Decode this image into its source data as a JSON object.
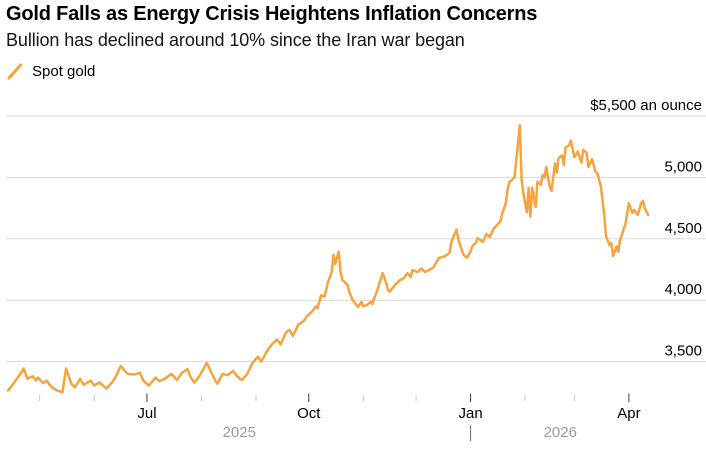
{
  "header": {
    "title": "Gold Falls as Energy Crisis Heightens Inflation Concerns",
    "subtitle": "Bullion has declined around 10% since the Iran war began",
    "legend": [
      {
        "label": "Spot gold",
        "swatch": "orange-slash"
      }
    ]
  },
  "colors": {
    "accent_orange": "#F7A33D",
    "gridline": "#D9D9D9",
    "minor_tick": "#C9C9C9",
    "major_tick": "#3A3A3A",
    "axis_text": "#000000",
    "year_text": "#9B9B9B",
    "year_separator": "#6E6E6E",
    "title_text": "#000000",
    "subtitle_text": "#151515"
  },
  "chart_data": {
    "type": "line",
    "title": "Gold Falls as Energy Crisis Heightens Inflation Concerns",
    "subtitle": "Bullion has declined around 10% since the Iran war began",
    "legend_position": "top-left",
    "grid": "horizontal",
    "x_domain": [
      "2025-04-13",
      "2026-04-13"
    ],
    "ylim": [
      3200,
      5500
    ],
    "yticks": [
      {
        "value": 5500,
        "label": "$5,500 an ounce"
      },
      {
        "value": 5000,
        "label": "5,000"
      },
      {
        "value": 4500,
        "label": "4,500"
      },
      {
        "value": 4000,
        "label": "4,000"
      },
      {
        "value": 3500,
        "label": "3,500"
      }
    ],
    "xticks": [
      {
        "date": "2025-05-01",
        "label": ""
      },
      {
        "date": "2025-06-01",
        "label": ""
      },
      {
        "date": "2025-07-01",
        "label": "Jul"
      },
      {
        "date": "2025-08-01",
        "label": ""
      },
      {
        "date": "2025-09-01",
        "label": ""
      },
      {
        "date": "2025-10-01",
        "label": "Oct"
      },
      {
        "date": "2025-11-01",
        "label": ""
      },
      {
        "date": "2025-12-01",
        "label": ""
      },
      {
        "date": "2026-01-01",
        "label": "Jan"
      },
      {
        "date": "2026-02-01",
        "label": ""
      },
      {
        "date": "2026-03-01",
        "label": ""
      },
      {
        "date": "2026-04-01",
        "label": "Apr"
      }
    ],
    "year_labels": [
      {
        "label": "2025",
        "from": "2025-04-13",
        "to": "2026-01-01"
      },
      {
        "label": "2026",
        "from": "2026-01-01",
        "to": "2026-04-13"
      }
    ],
    "year_separator_date": "2026-01-01",
    "series": [
      {
        "name": "Spot gold",
        "color": "#F7A33D",
        "points": [
          [
            "2025-04-13",
            3265
          ],
          [
            "2025-04-16",
            3320
          ],
          [
            "2025-04-18",
            3360
          ],
          [
            "2025-04-20",
            3400
          ],
          [
            "2025-04-22",
            3445
          ],
          [
            "2025-04-24",
            3360
          ],
          [
            "2025-04-27",
            3380
          ],
          [
            "2025-04-29",
            3345
          ],
          [
            "2025-04-30",
            3370
          ],
          [
            "2025-05-03",
            3325
          ],
          [
            "2025-05-05",
            3345
          ],
          [
            "2025-05-07",
            3305
          ],
          [
            "2025-05-09",
            3280
          ],
          [
            "2025-05-11",
            3265
          ],
          [
            "2025-05-14",
            3250
          ],
          [
            "2025-05-16",
            3445
          ],
          [
            "2025-05-19",
            3320
          ],
          [
            "2025-05-21",
            3290
          ],
          [
            "2025-05-24",
            3360
          ],
          [
            "2025-05-26",
            3310
          ],
          [
            "2025-05-30",
            3345
          ],
          [
            "2025-06-01",
            3305
          ],
          [
            "2025-06-04",
            3330
          ],
          [
            "2025-06-08",
            3280
          ],
          [
            "2025-06-12",
            3345
          ],
          [
            "2025-06-14",
            3400
          ],
          [
            "2025-06-16",
            3465
          ],
          [
            "2025-06-20",
            3400
          ],
          [
            "2025-06-24",
            3395
          ],
          [
            "2025-06-27",
            3410
          ],
          [
            "2025-06-29",
            3345
          ],
          [
            "2025-07-02",
            3305
          ],
          [
            "2025-07-06",
            3370
          ],
          [
            "2025-07-08",
            3340
          ],
          [
            "2025-07-11",
            3360
          ],
          [
            "2025-07-15",
            3400
          ],
          [
            "2025-07-18",
            3350
          ],
          [
            "2025-07-21",
            3410
          ],
          [
            "2025-07-24",
            3440
          ],
          [
            "2025-07-26",
            3370
          ],
          [
            "2025-07-28",
            3330
          ],
          [
            "2025-07-31",
            3385
          ],
          [
            "2025-08-04",
            3490
          ],
          [
            "2025-08-08",
            3370
          ],
          [
            "2025-08-10",
            3320
          ],
          [
            "2025-08-13",
            3400
          ],
          [
            "2025-08-16",
            3390
          ],
          [
            "2025-08-19",
            3425
          ],
          [
            "2025-08-22",
            3370
          ],
          [
            "2025-08-24",
            3350
          ],
          [
            "2025-08-27",
            3400
          ],
          [
            "2025-08-30",
            3490
          ],
          [
            "2025-09-02",
            3540
          ],
          [
            "2025-09-04",
            3500
          ],
          [
            "2025-09-07",
            3580
          ],
          [
            "2025-09-10",
            3640
          ],
          [
            "2025-09-13",
            3680
          ],
          [
            "2025-09-15",
            3640
          ],
          [
            "2025-09-18",
            3735
          ],
          [
            "2025-09-20",
            3760
          ],
          [
            "2025-09-22",
            3710
          ],
          [
            "2025-09-25",
            3800
          ],
          [
            "2025-09-28",
            3830
          ],
          [
            "2025-09-30",
            3870
          ],
          [
            "2025-10-03",
            3910
          ],
          [
            "2025-10-05",
            3950
          ],
          [
            "2025-10-06",
            3935
          ],
          [
            "2025-10-08",
            4040
          ],
          [
            "2025-10-10",
            4030
          ],
          [
            "2025-10-12",
            4150
          ],
          [
            "2025-10-14",
            4230
          ],
          [
            "2025-10-15",
            4370
          ],
          [
            "2025-10-16",
            4295
          ],
          [
            "2025-10-18",
            4395
          ],
          [
            "2025-10-19",
            4240
          ],
          [
            "2025-10-20",
            4165
          ],
          [
            "2025-10-22",
            4140
          ],
          [
            "2025-10-23",
            4125
          ],
          [
            "2025-10-24",
            4070
          ],
          [
            "2025-10-26",
            4000
          ],
          [
            "2025-10-29",
            3945
          ],
          [
            "2025-10-31",
            3985
          ],
          [
            "2025-11-01",
            3950
          ],
          [
            "2025-11-03",
            3960
          ],
          [
            "2025-11-05",
            3985
          ],
          [
            "2025-11-06",
            3970
          ],
          [
            "2025-11-09",
            4085
          ],
          [
            "2025-11-12",
            4220
          ],
          [
            "2025-11-14",
            4140
          ],
          [
            "2025-11-15",
            4085
          ],
          [
            "2025-11-16",
            4070
          ],
          [
            "2025-11-19",
            4125
          ],
          [
            "2025-11-22",
            4165
          ],
          [
            "2025-11-24",
            4180
          ],
          [
            "2025-11-26",
            4220
          ],
          [
            "2025-11-28",
            4190
          ],
          [
            "2025-11-29",
            4245
          ],
          [
            "2025-12-02",
            4230
          ],
          [
            "2025-12-04",
            4260
          ],
          [
            "2025-12-06",
            4230
          ],
          [
            "2025-12-09",
            4250
          ],
          [
            "2025-12-11",
            4270
          ],
          [
            "2025-12-14",
            4345
          ],
          [
            "2025-12-17",
            4355
          ],
          [
            "2025-12-20",
            4385
          ],
          [
            "2025-12-21",
            4470
          ],
          [
            "2025-12-24",
            4575
          ],
          [
            "2025-12-25",
            4500
          ],
          [
            "2025-12-26",
            4450
          ],
          [
            "2025-12-28",
            4370
          ],
          [
            "2025-12-30",
            4345
          ],
          [
            "2026-01-01",
            4400
          ],
          [
            "2026-01-02",
            4440
          ],
          [
            "2026-01-04",
            4470
          ],
          [
            "2026-01-05",
            4505
          ],
          [
            "2026-01-08",
            4475
          ],
          [
            "2026-01-10",
            4540
          ],
          [
            "2026-01-12",
            4515
          ],
          [
            "2026-01-14",
            4580
          ],
          [
            "2026-01-15",
            4595
          ],
          [
            "2026-01-18",
            4645
          ],
          [
            "2026-01-19",
            4710
          ],
          [
            "2026-01-21",
            4790
          ],
          [
            "2026-01-22",
            4900
          ],
          [
            "2026-01-23",
            4960
          ],
          [
            "2026-01-25",
            4985
          ],
          [
            "2026-01-26",
            5005
          ],
          [
            "2026-01-29",
            5425
          ],
          [
            "2026-01-30",
            4980
          ],
          [
            "2026-01-31",
            4870
          ],
          [
            "2026-02-02",
            4715
          ],
          [
            "2026-02-03",
            4915
          ],
          [
            "2026-02-04",
            4680
          ],
          [
            "2026-02-05",
            4915
          ],
          [
            "2026-02-07",
            4760
          ],
          [
            "2026-02-08",
            4965
          ],
          [
            "2026-02-10",
            4940
          ],
          [
            "2026-02-11",
            5020
          ],
          [
            "2026-02-12",
            5000
          ],
          [
            "2026-02-13",
            5085
          ],
          [
            "2026-02-15",
            4925
          ],
          [
            "2026-02-16",
            4890
          ],
          [
            "2026-02-18",
            5115
          ],
          [
            "2026-02-19",
            5040
          ],
          [
            "2026-02-20",
            5155
          ],
          [
            "2026-02-22",
            5180
          ],
          [
            "2026-02-23",
            5100
          ],
          [
            "2026-02-24",
            5245
          ],
          [
            "2026-02-26",
            5260
          ],
          [
            "2026-02-27",
            5300
          ],
          [
            "2026-03-01",
            5165
          ],
          [
            "2026-03-03",
            5210
          ],
          [
            "2026-03-05",
            5120
          ],
          [
            "2026-03-06",
            5225
          ],
          [
            "2026-03-08",
            5200
          ],
          [
            "2026-03-09",
            5085
          ],
          [
            "2026-03-11",
            5150
          ],
          [
            "2026-03-13",
            5045
          ],
          [
            "2026-03-14",
            5035
          ],
          [
            "2026-03-16",
            4930
          ],
          [
            "2026-03-18",
            4690
          ],
          [
            "2026-03-19",
            4520
          ],
          [
            "2026-03-21",
            4450
          ],
          [
            "2026-03-22",
            4465
          ],
          [
            "2026-03-23",
            4360
          ],
          [
            "2026-03-25",
            4440
          ],
          [
            "2026-03-26",
            4395
          ],
          [
            "2026-03-27",
            4490
          ],
          [
            "2026-03-30",
            4620
          ],
          [
            "2026-04-01",
            4790
          ],
          [
            "2026-04-03",
            4710
          ],
          [
            "2026-04-04",
            4735
          ],
          [
            "2026-04-06",
            4695
          ],
          [
            "2026-04-08",
            4790
          ],
          [
            "2026-04-09",
            4810
          ],
          [
            "2026-04-10",
            4750
          ],
          [
            "2026-04-12",
            4695
          ]
        ]
      }
    ]
  }
}
